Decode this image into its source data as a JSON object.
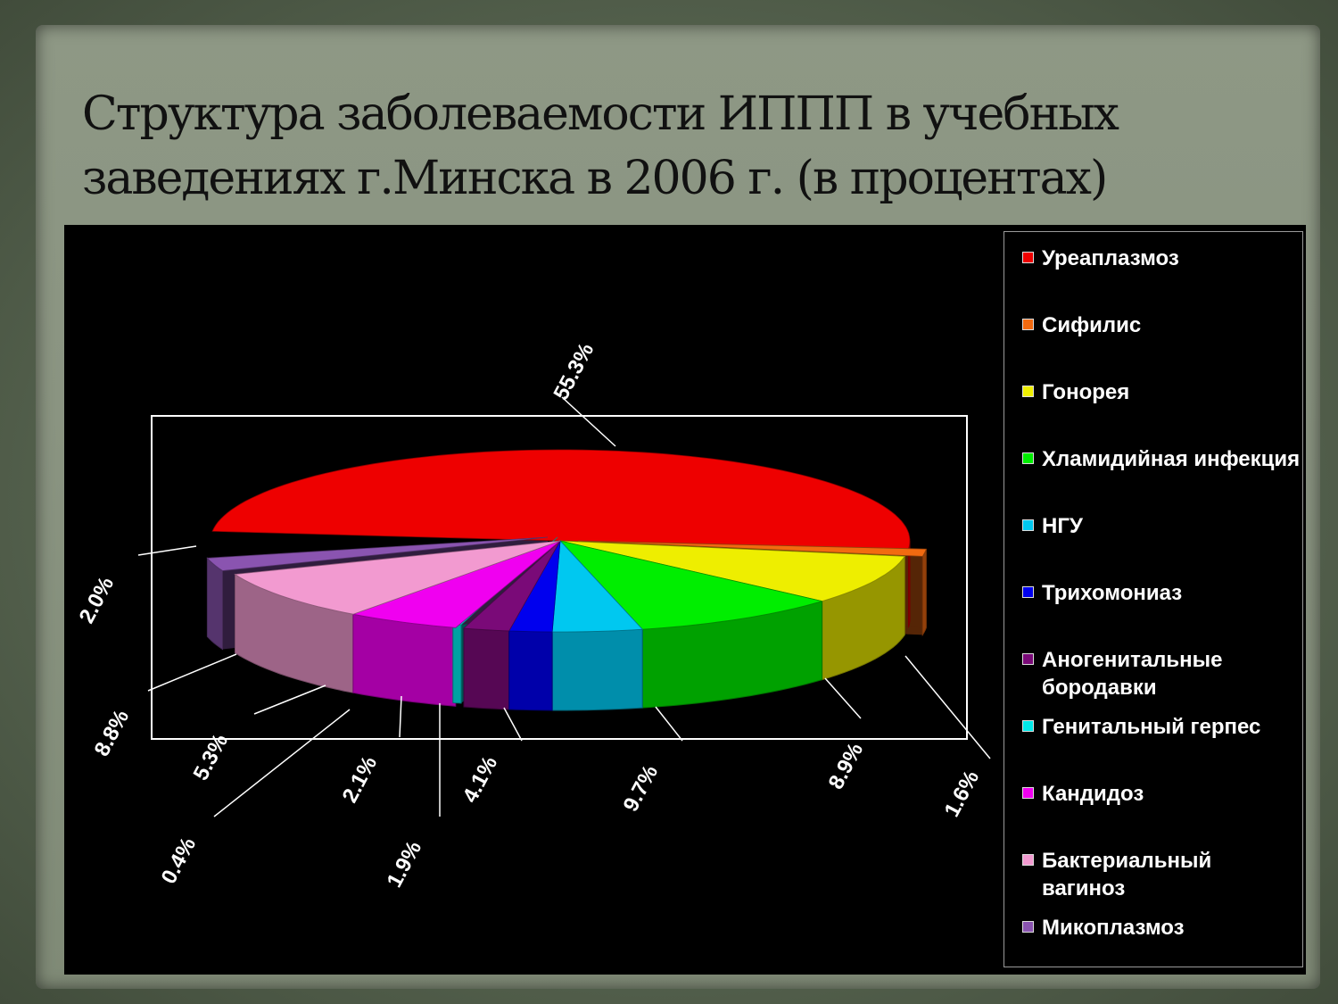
{
  "slide": {
    "title_line1": "Структура заболеваемости ИППП в учебных",
    "title_line2": "заведениях г.Минска в 2006 г. (в процентах)"
  },
  "chart_data": {
    "type": "pie",
    "title": "Структура заболеваемости ИППП в учебных заведениях г.Минска в 2006 г. (в процентах)",
    "unit": "%",
    "legend_position": "right",
    "slices": [
      {
        "name": "Уреаплазмоз",
        "value": 55.3,
        "label": "55.3%",
        "color": "#ee0000"
      },
      {
        "name": "Сифилис",
        "value": 1.6,
        "label": "1.6%",
        "color": "#f26a10"
      },
      {
        "name": "Гонорея",
        "value": 8.9,
        "label": "8.9%",
        "color": "#eeee00"
      },
      {
        "name": "Хламидийная инфекция",
        "value": 9.7,
        "label": "9.7%",
        "color": "#00ee00"
      },
      {
        "name": "НГУ",
        "value": 4.1,
        "label": "4.1%",
        "color": "#00c8f0"
      },
      {
        "name": "Трихомониаз",
        "value": 1.9,
        "label": "1.9%",
        "color": "#0000ee"
      },
      {
        "name": "Аногенитальные бородавки",
        "value": 2.1,
        "label": "2.1%",
        "color": "#7a0a78"
      },
      {
        "name": "Генитальный герпес",
        "value": 0.4,
        "label": "0.4%",
        "color": "#00e8e8"
      },
      {
        "name": "Кандидоз",
        "value": 5.3,
        "label": "5.3%",
        "color": "#f000f0"
      },
      {
        "name": "Бактериальный вагиноз",
        "value": 8.8,
        "label": "8.8%",
        "color": "#f29ad0"
      },
      {
        "name": "Микоплазмоз",
        "value": 2.0,
        "label": "2.0%",
        "color": "#8a54b0"
      }
    ]
  },
  "legend": {
    "items": [
      {
        "label": "Уреаплазмоз",
        "color": "#ee0000"
      },
      {
        "label": "Сифилис",
        "color": "#f26a10"
      },
      {
        "label": "Гонорея",
        "color": "#eeee00"
      },
      {
        "label": "Хламидийная инфекция",
        "color": "#00ee00"
      },
      {
        "label": "НГУ",
        "color": "#00c8f0"
      },
      {
        "label": "Трихомониаз",
        "color": "#0000ee"
      },
      {
        "label": "Аногенитальные бородавки",
        "color": "#7a0a78"
      },
      {
        "label": "Генитальный герпес",
        "color": "#00e8e8"
      },
      {
        "label": "Кандидоз",
        "color": "#f000f0"
      },
      {
        "label": "Бактериальный вагиноз",
        "color": "#f29ad0"
      },
      {
        "label": "Микоплазмоз",
        "color": "#8a54b0"
      }
    ]
  }
}
